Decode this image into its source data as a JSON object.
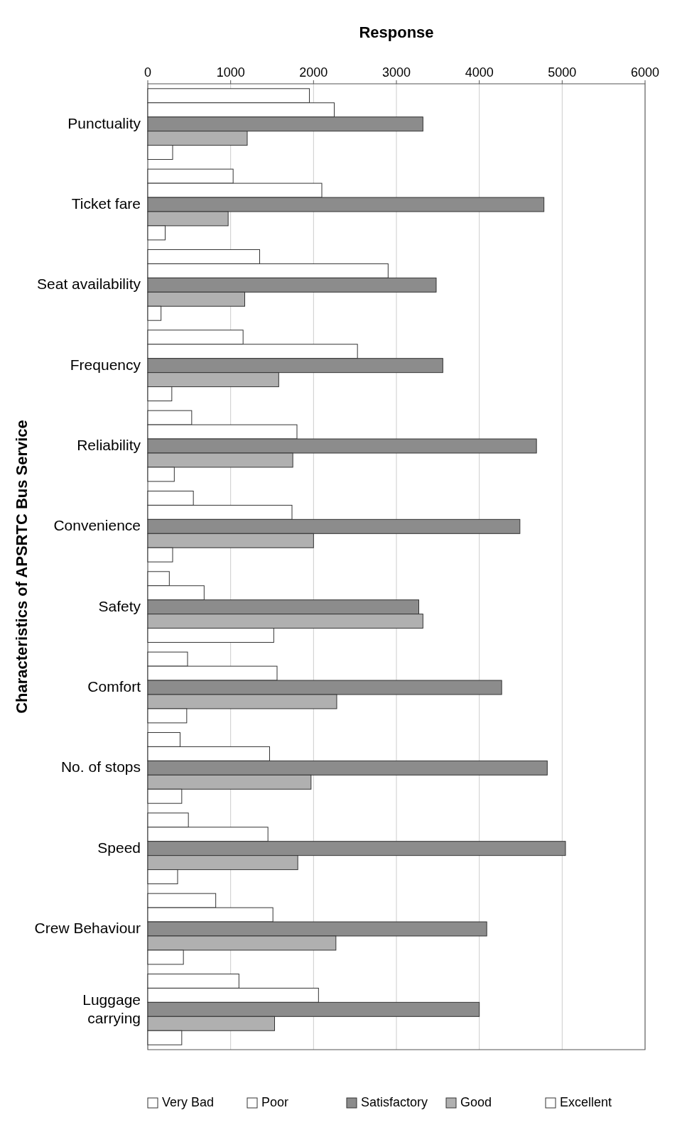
{
  "chart_data": {
    "type": "bar",
    "orientation": "horizontal",
    "xlabel": "Response",
    "ylabel": "Characteristics of APSRTC Bus Service",
    "categories": [
      "Punctuality",
      "Ticket fare",
      "Seat availability",
      "Frequency",
      "Reliability",
      "Convenience",
      "Safety",
      "Comfort",
      "No. of stops",
      "Speed",
      "Crew Behaviour",
      "Luggage\ncarrying"
    ],
    "series": [
      {
        "name": "Very Bad",
        "color": "#ffffff",
        "values": [
          1950,
          1030,
          1350,
          1150,
          530,
          550,
          260,
          480,
          390,
          490,
          820,
          1100
        ]
      },
      {
        "name": "Poor",
        "color": "#ffffff",
        "values": [
          2250,
          2100,
          2900,
          2530,
          1800,
          1740,
          680,
          1560,
          1470,
          1450,
          1510,
          2060
        ]
      },
      {
        "name": "Satisfactory",
        "color": "#8c8c8c",
        "values": [
          3320,
          4780,
          3480,
          3560,
          4690,
          4490,
          3270,
          4270,
          4820,
          5040,
          4090,
          4000
        ]
      },
      {
        "name": "Good",
        "color": "#b0b0b0",
        "values": [
          1200,
          970,
          1170,
          1580,
          1750,
          2000,
          3320,
          2280,
          1970,
          1810,
          2270,
          1530
        ]
      },
      {
        "name": "Excellent",
        "color": "#ffffff",
        "values": [
          300,
          210,
          160,
          290,
          320,
          300,
          1520,
          470,
          410,
          360,
          430,
          410
        ]
      }
    ],
    "xlim": [
      0,
      6000
    ],
    "xticks": [
      0,
      1000,
      2000,
      3000,
      4000,
      5000,
      6000
    ],
    "grid": "x",
    "legend": "bottom"
  }
}
